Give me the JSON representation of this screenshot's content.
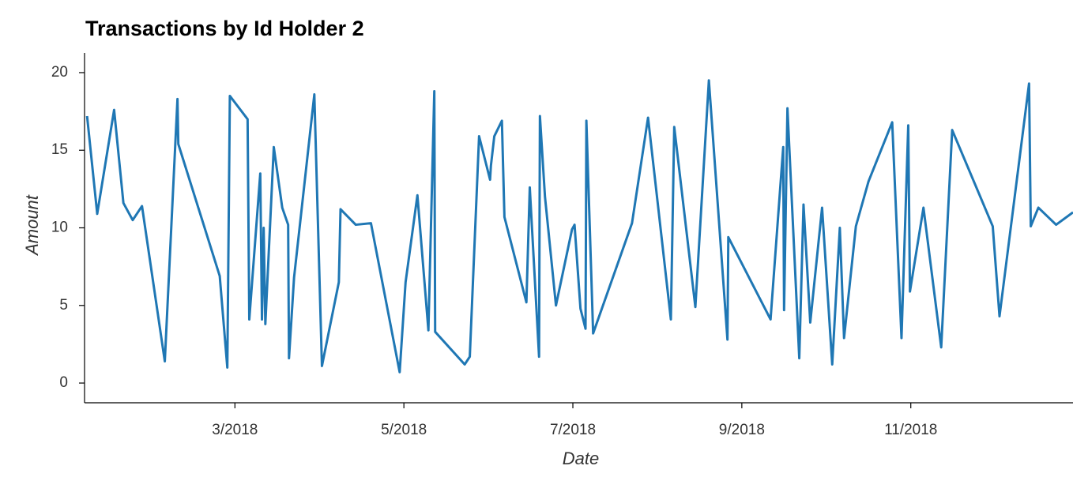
{
  "chart_data": {
    "type": "line",
    "title": "Transactions by Id Holder 2",
    "x_label": "Date",
    "y_label": "Amount",
    "color": "#1f77b4",
    "x": [
      1.25,
      1.37,
      1.57,
      1.68,
      1.79,
      1.9,
      2.17,
      2.32,
      2.33,
      2.82,
      2.91,
      2.94,
      3.15,
      3.17,
      3.3,
      3.32,
      3.34,
      3.36,
      3.46,
      3.56,
      3.63,
      3.64,
      3.7,
      3.94,
      4.03,
      4.23,
      4.25,
      4.43,
      4.61,
      4.95,
      5.02,
      5.16,
      5.29,
      5.36,
      5.37,
      5.72,
      5.78,
      5.89,
      6.02,
      6.03,
      6.07,
      6.16,
      6.19,
      6.45,
      6.49,
      6.6,
      6.61,
      6.67,
      6.8,
      6.99,
      7.02,
      7.09,
      7.15,
      7.16,
      7.24,
      7.7,
      7.89,
      8.16,
      8.2,
      8.45,
      8.61,
      8.83,
      8.84,
      9.34,
      9.49,
      9.5,
      9.54,
      9.68,
      9.73,
      9.81,
      9.95,
      10.07,
      10.16,
      10.21,
      10.35,
      10.5,
      10.78,
      10.89,
      10.97,
      10.99,
      11.15,
      11.36,
      11.49,
      11.97,
      12.05,
      12.4,
      12.42,
      12.51,
      12.72,
      12.92
    ],
    "values": [
      17.2,
      10.9,
      17.6,
      11.6,
      10.5,
      11.4,
      1.4,
      18.3,
      15.4,
      6.9,
      1.0,
      18.5,
      17.0,
      4.1,
      13.5,
      4.1,
      10.0,
      3.8,
      15.2,
      11.3,
      10.2,
      1.6,
      6.8,
      18.6,
      1.1,
      6.5,
      11.2,
      10.2,
      10.3,
      0.7,
      6.5,
      12.1,
      3.4,
      18.8,
      3.3,
      1.2,
      1.7,
      15.9,
      13.1,
      14.0,
      15.9,
      16.9,
      10.7,
      5.2,
      12.6,
      1.7,
      17.2,
      12.0,
      5.0,
      9.9,
      10.2,
      4.8,
      3.5,
      16.9,
      3.2,
      10.3,
      17.1,
      4.1,
      16.5,
      4.9,
      19.5,
      2.8,
      9.4,
      4.1,
      15.2,
      4.7,
      17.7,
      1.6,
      11.5,
      3.9,
      11.3,
      1.2,
      10.0,
      2.9,
      10.1,
      13.0,
      16.8,
      2.9,
      16.6,
      5.9,
      11.3,
      2.3,
      16.3,
      10.1,
      4.3,
      19.3,
      10.1,
      11.3,
      10.2,
      11.0
    ],
    "xlim": [
      1.22,
      12.92
    ],
    "xticks": [
      {
        "value": 3,
        "label": "3/2018"
      },
      {
        "value": 5,
        "label": "5/2018"
      },
      {
        "value": 7,
        "label": "7/2018"
      },
      {
        "value": 9,
        "label": "9/2018"
      },
      {
        "value": 11,
        "label": "11/2018"
      }
    ],
    "ylim": [
      -1.27,
      21.27
    ],
    "yticks": [
      0,
      5,
      10,
      15,
      20
    ],
    "grid": false
  }
}
